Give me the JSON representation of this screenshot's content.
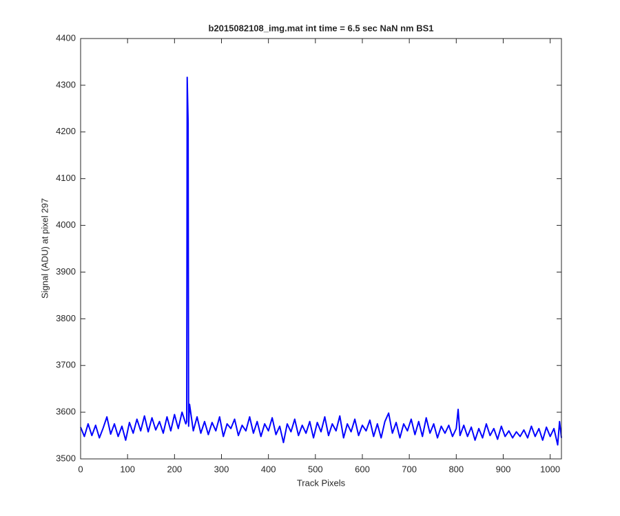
{
  "chart_data": {
    "type": "line",
    "title": "b2015082108_img.mat int time = 6.5 sec  NaN nm BS1",
    "x_label": "Track Pixels",
    "y_label": "Signal (ADU) at pixel 297",
    "xlim": [
      0,
      1024
    ],
    "ylim": [
      3500,
      4400
    ],
    "xticks": [
      0,
      100,
      200,
      300,
      400,
      500,
      600,
      700,
      800,
      900,
      1000
    ],
    "yticks": [
      3500,
      3600,
      3700,
      3800,
      3900,
      4000,
      4100,
      4200,
      4300,
      4400
    ],
    "series": [
      {
        "color": "#0000ff",
        "x": [
          0,
          8,
          16,
          24,
          32,
          40,
          48,
          56,
          64,
          72,
          80,
          88,
          96,
          104,
          112,
          120,
          128,
          136,
          144,
          152,
          160,
          168,
          176,
          184,
          192,
          200,
          208,
          216,
          224,
          226,
          227,
          229,
          230,
          232,
          240,
          248,
          256,
          264,
          272,
          280,
          288,
          296,
          304,
          312,
          320,
          328,
          336,
          344,
          352,
          360,
          368,
          376,
          384,
          392,
          400,
          408,
          416,
          424,
          432,
          440,
          448,
          456,
          464,
          472,
          480,
          488,
          496,
          504,
          512,
          520,
          528,
          536,
          544,
          552,
          560,
          568,
          576,
          584,
          592,
          600,
          608,
          616,
          624,
          632,
          640,
          648,
          656,
          664,
          672,
          680,
          688,
          696,
          704,
          712,
          720,
          728,
          736,
          744,
          752,
          760,
          768,
          776,
          784,
          792,
          800,
          804,
          808,
          816,
          824,
          832,
          840,
          848,
          856,
          864,
          872,
          880,
          888,
          896,
          904,
          912,
          920,
          928,
          936,
          944,
          952,
          960,
          968,
          976,
          984,
          992,
          1000,
          1008,
          1016,
          1020,
          1024
        ],
        "values": [
          3568,
          3548,
          3575,
          3550,
          3572,
          3545,
          3566,
          3590,
          3553,
          3575,
          3548,
          3570,
          3540,
          3578,
          3555,
          3585,
          3560,
          3592,
          3558,
          3588,
          3562,
          3580,
          3555,
          3590,
          3560,
          3595,
          3565,
          3600,
          3575,
          3580,
          4317,
          4220,
          3570,
          3617,
          3560,
          3590,
          3555,
          3580,
          3552,
          3578,
          3560,
          3590,
          3548,
          3575,
          3565,
          3585,
          3550,
          3572,
          3560,
          3590,
          3555,
          3580,
          3548,
          3575,
          3560,
          3588,
          3552,
          3570,
          3535,
          3575,
          3558,
          3585,
          3550,
          3572,
          3555,
          3580,
          3545,
          3578,
          3558,
          3590,
          3550,
          3575,
          3560,
          3592,
          3545,
          3575,
          3558,
          3585,
          3550,
          3572,
          3560,
          3583,
          3548,
          3575,
          3545,
          3580,
          3598,
          3555,
          3578,
          3545,
          3575,
          3560,
          3585,
          3552,
          3580,
          3548,
          3588,
          3555,
          3575,
          3545,
          3570,
          3555,
          3572,
          3548,
          3565,
          3606,
          3550,
          3572,
          3548,
          3568,
          3540,
          3565,
          3545,
          3575,
          3550,
          3565,
          3542,
          3570,
          3548,
          3560,
          3545,
          3558,
          3548,
          3562,
          3545,
          3570,
          3548,
          3565,
          3540,
          3568,
          3548,
          3565,
          3530,
          3580,
          3545
        ]
      }
    ]
  }
}
